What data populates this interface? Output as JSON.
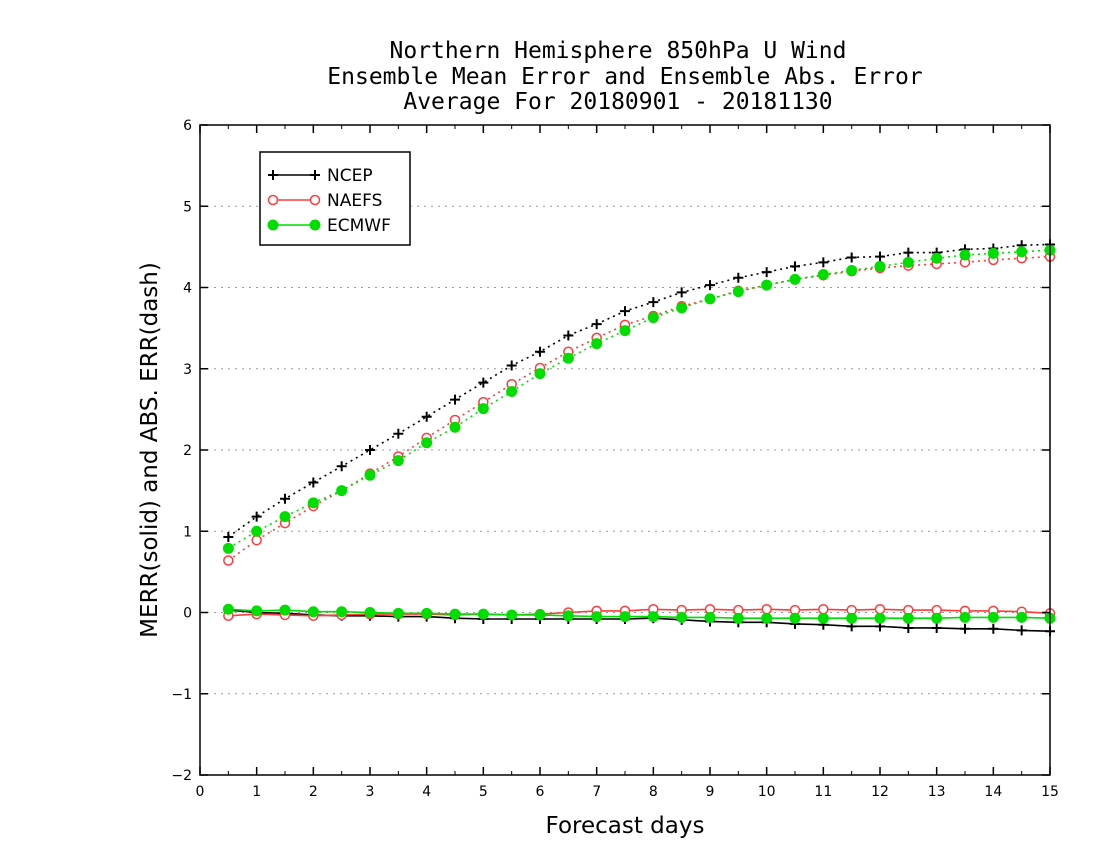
{
  "chart_data": {
    "type": "line",
    "title_lines": [
      "Northern Hemisphere 850hPa U Wind",
      "Ensemble Mean Error and Ensemble Abs. Error",
      "Average For 20180901 - 20181130"
    ],
    "xlabel": "Forecast days",
    "ylabel": "MERR(solid) and ABS. ERR(dash)",
    "xlim": [
      0,
      15
    ],
    "ylim": [
      -2,
      6
    ],
    "x_ticks": [
      "0",
      "1",
      "2",
      "3",
      "4",
      "5",
      "6",
      "7",
      "8",
      "9",
      "10",
      "11",
      "12",
      "13",
      "14",
      "15"
    ],
    "y_ticks": [
      "-2",
      "-1",
      "0",
      "1",
      "2",
      "3",
      "4",
      "5",
      "6"
    ],
    "grid": "horizontal dotted",
    "legend_position": "top-left",
    "x": [
      0.5,
      1,
      1.5,
      2,
      2.5,
      3,
      3.5,
      4,
      4.5,
      5,
      5.5,
      6,
      6.5,
      7,
      7.5,
      8,
      8.5,
      9,
      9.5,
      10,
      10.5,
      11,
      11.5,
      12,
      12.5,
      13,
      13.5,
      14,
      14.5,
      15
    ],
    "series": [
      {
        "name": "NCEP",
        "color": "#000000",
        "marker": "plus",
        "abs_err": [
          0.93,
          1.18,
          1.4,
          1.6,
          1.8,
          2.0,
          2.2,
          2.41,
          2.62,
          2.83,
          3.04,
          3.21,
          3.41,
          3.55,
          3.71,
          3.82,
          3.94,
          4.03,
          4.12,
          4.19,
          4.26,
          4.31,
          4.37,
          4.38,
          4.43,
          4.43,
          4.47,
          4.48,
          4.52,
          4.53
        ],
        "mean_err": [
          0.03,
          0.0,
          -0.01,
          -0.03,
          -0.04,
          -0.04,
          -0.05,
          -0.05,
          -0.07,
          -0.08,
          -0.08,
          -0.08,
          -0.08,
          -0.08,
          -0.08,
          -0.07,
          -0.09,
          -0.11,
          -0.12,
          -0.12,
          -0.14,
          -0.15,
          -0.17,
          -0.17,
          -0.19,
          -0.19,
          -0.2,
          -0.2,
          -0.22,
          -0.23
        ]
      },
      {
        "name": "NAEFS",
        "color": "#ff3b3b",
        "marker": "open-circle",
        "abs_err": [
          0.64,
          0.89,
          1.1,
          1.31,
          1.5,
          1.71,
          1.92,
          2.15,
          2.37,
          2.59,
          2.81,
          3.01,
          3.21,
          3.38,
          3.54,
          3.65,
          3.77,
          3.86,
          3.96,
          4.03,
          4.1,
          4.15,
          4.2,
          4.24,
          4.27,
          4.29,
          4.31,
          4.34,
          4.36,
          4.38
        ],
        "mean_err": [
          -0.04,
          -0.02,
          -0.03,
          -0.04,
          -0.03,
          -0.02,
          -0.02,
          -0.02,
          -0.03,
          -0.02,
          -0.03,
          -0.02,
          0.0,
          0.02,
          0.02,
          0.04,
          0.03,
          0.04,
          0.03,
          0.04,
          0.03,
          0.04,
          0.03,
          0.04,
          0.03,
          0.03,
          0.02,
          0.02,
          0.01,
          -0.01
        ]
      },
      {
        "name": "ECMWF",
        "color": "#00dd00",
        "marker": "filled-circle",
        "abs_err": [
          0.79,
          1.0,
          1.18,
          1.35,
          1.5,
          1.69,
          1.87,
          2.09,
          2.28,
          2.51,
          2.72,
          2.94,
          3.13,
          3.31,
          3.47,
          3.63,
          3.75,
          3.86,
          3.95,
          4.03,
          4.1,
          4.16,
          4.21,
          4.26,
          4.31,
          4.36,
          4.4,
          4.42,
          4.44,
          4.46
        ],
        "mean_err": [
          0.04,
          0.02,
          0.03,
          0.01,
          0.01,
          0.0,
          -0.01,
          -0.01,
          -0.02,
          -0.02,
          -0.03,
          -0.03,
          -0.04,
          -0.05,
          -0.05,
          -0.05,
          -0.06,
          -0.06,
          -0.07,
          -0.07,
          -0.07,
          -0.07,
          -0.07,
          -0.07,
          -0.07,
          -0.07,
          -0.06,
          -0.06,
          -0.06,
          -0.07
        ]
      }
    ]
  }
}
